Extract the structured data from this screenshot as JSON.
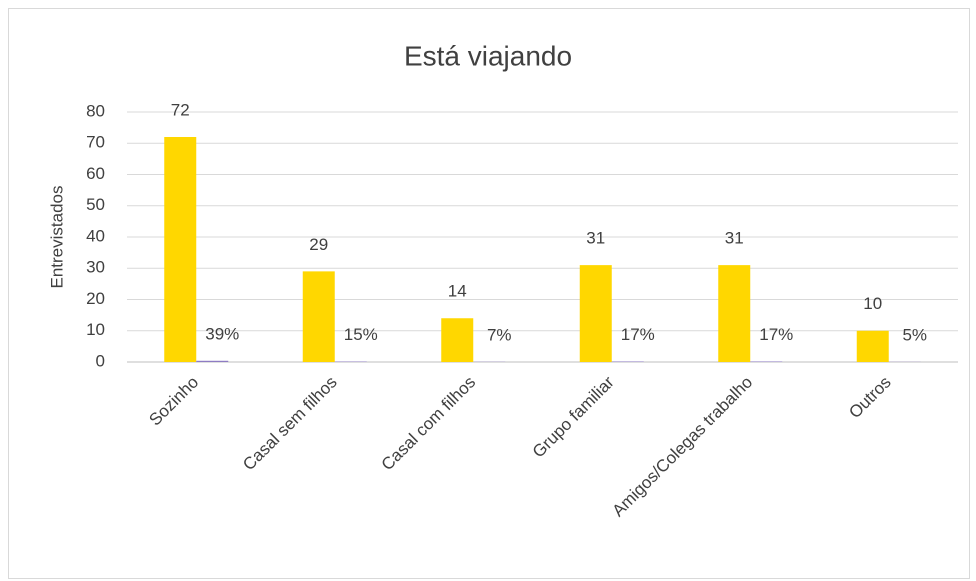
{
  "chart_data": {
    "type": "bar",
    "title": "Está viajando",
    "y_label": "Entrevistados",
    "categories": [
      "Sozinho",
      "Casal sem filhos",
      "Casal com filhos",
      "Grupo familiar",
      "Amigos/Colegas trabalho",
      "Outros"
    ],
    "series": [
      {
        "color": "#ffd700",
        "values": [
          72,
          29,
          14,
          31,
          31,
          10
        ]
      },
      {
        "color": "#8e7cc3",
        "values": [
          0.39,
          0.15,
          0.07,
          0.17,
          0.17,
          0.05
        ],
        "value_labels": [
          "39%",
          "15%",
          "7%",
          "17%",
          "17%",
          "5%"
        ]
      }
    ],
    "ylim": [
      0,
      80
    ],
    "yticks": [
      0,
      10,
      20,
      30,
      40,
      50,
      60,
      70,
      80
    ],
    "grid": true
  }
}
